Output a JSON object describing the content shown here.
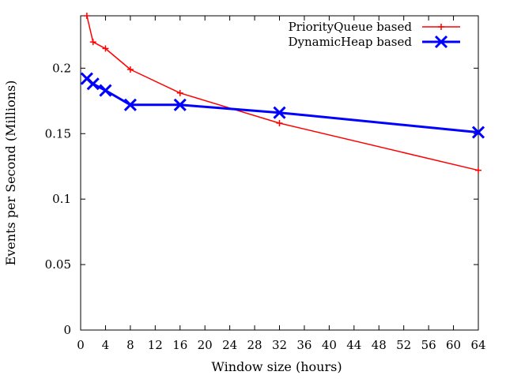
{
  "chart_data": {
    "type": "line",
    "xlabel": "Window size (hours)",
    "ylabel": "Events per Second (Millions)",
    "xlim": [
      0,
      64
    ],
    "ylim": [
      0,
      0.24
    ],
    "xticks": [
      "0",
      "4",
      "8",
      "12",
      "16",
      "20",
      "24",
      "28",
      "32",
      "36",
      "40",
      "44",
      "48",
      "52",
      "56",
      "60",
      "64"
    ],
    "yticks": [
      "0",
      "0.05",
      "0.1",
      "0.15",
      "0.2"
    ],
    "legend_position": "top-right",
    "grid": false,
    "series": [
      {
        "name": "PriorityQueue based",
        "color": "#ff0000",
        "marker": "plus",
        "x": [
          1,
          2,
          4,
          8,
          16,
          32,
          64
        ],
        "values": [
          0.24,
          0.22,
          0.215,
          0.199,
          0.181,
          0.158,
          0.122
        ]
      },
      {
        "name": "DynamicHeap based",
        "color": "#0000ff",
        "marker": "cross",
        "x": [
          1,
          2,
          4,
          8,
          16,
          32,
          64
        ],
        "values": [
          0.192,
          0.188,
          0.183,
          0.172,
          0.172,
          0.166,
          0.151
        ]
      }
    ]
  }
}
